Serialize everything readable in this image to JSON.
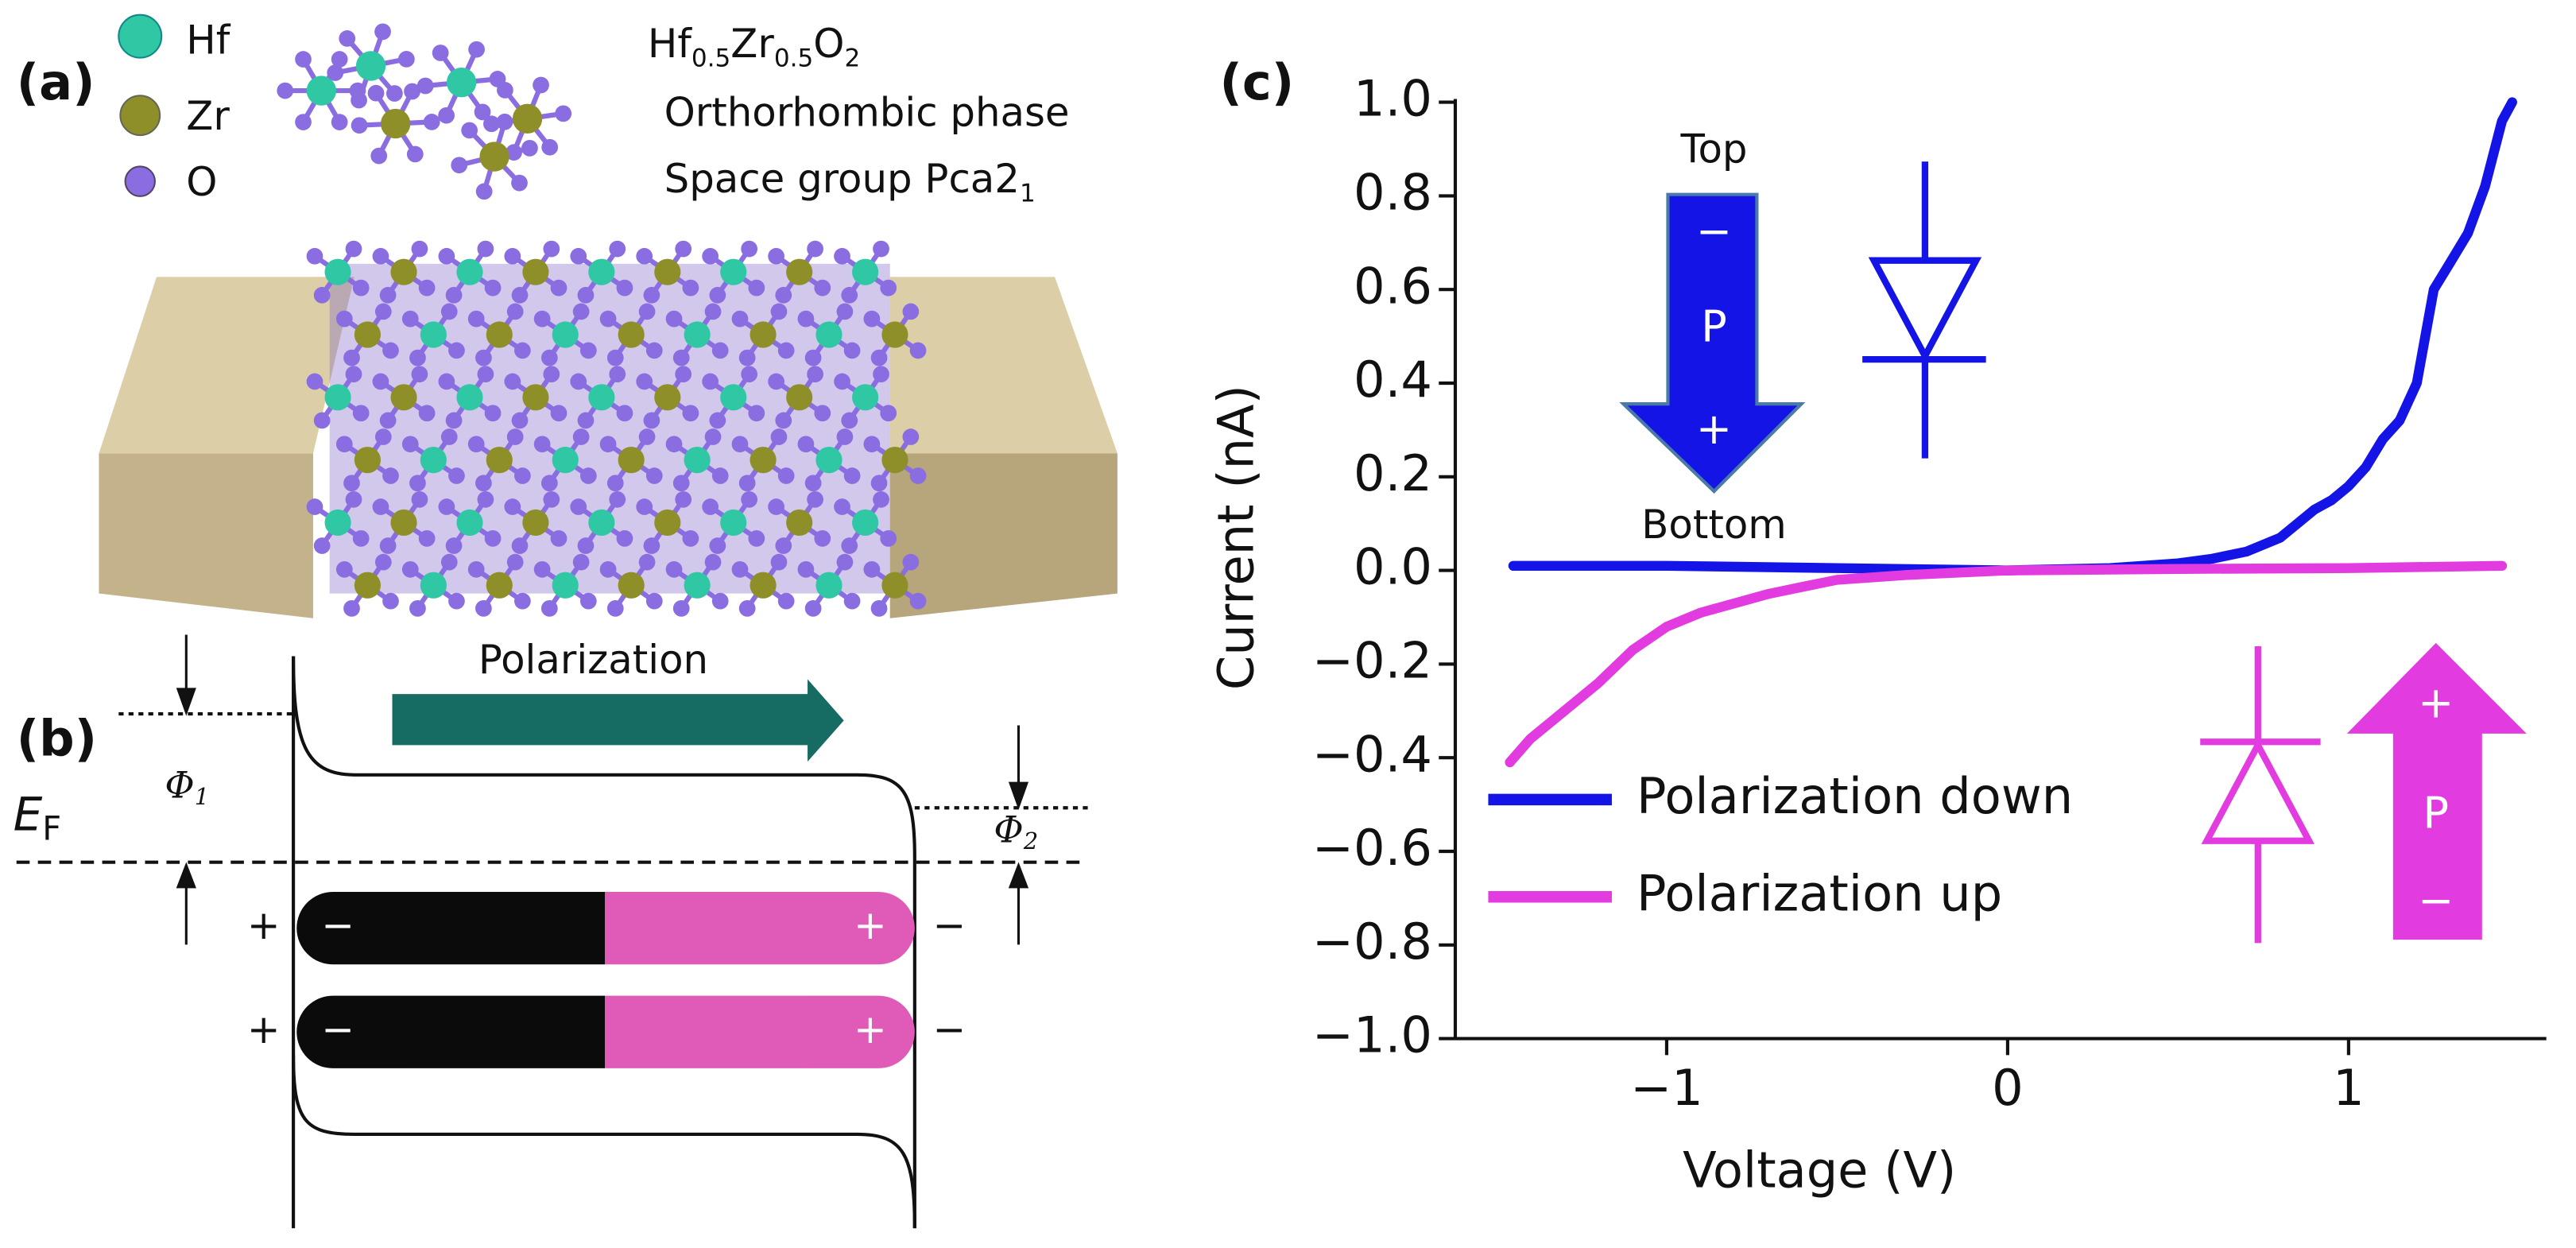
{
  "panel_a": {
    "label": "(a)",
    "legend": [
      "Hf",
      "Zr",
      "O"
    ],
    "formula": [
      "Hf",
      "0.5",
      "Zr",
      "0.5",
      "O",
      "2"
    ],
    "phase": "Orthorhombic phase",
    "space_group": [
      "Space group Pca2",
      "1"
    ]
  },
  "panel_b": {
    "label": "(b)",
    "polarization": "Polarization",
    "fermi": [
      "E",
      "F"
    ],
    "phi1": [
      "Φ",
      "1"
    ],
    "phi2": [
      "Φ",
      "2"
    ],
    "plus": "+",
    "minus": "−"
  },
  "chart_data": {
    "type": "line",
    "label": "(c)",
    "xlabel": "Voltage (V)",
    "ylabel": "Current (nA)",
    "xlim": [
      -1.62,
      1.58
    ],
    "ylim": [
      -1,
      1
    ],
    "xticks": [
      {
        "value": -1,
        "label": "−1"
      },
      0,
      1
    ],
    "yticks": [
      {
        "value": -1,
        "label": "−1.0"
      },
      {
        "value": -0.8,
        "label": "−0.8"
      },
      {
        "value": -0.6,
        "label": "−0.6"
      },
      {
        "value": -0.4,
        "label": "−0.4"
      },
      {
        "value": -0.2,
        "label": "−0.2"
      },
      {
        "value": 0,
        "label": "0.0"
      },
      0.2,
      0.4,
      0.6,
      0.8,
      {
        "value": 1,
        "label": "1.0"
      }
    ],
    "grid": false,
    "legend": "lower left",
    "series": [
      {
        "name": "Polarization down",
        "color": "#1414e6",
        "x": [
          -1.45,
          -1.0,
          -0.5,
          0,
          0.3,
          0.5,
          0.6,
          0.7,
          0.8,
          0.9,
          0.95,
          1.0,
          1.05,
          1.1,
          1.15,
          1.2,
          1.25,
          1.3,
          1.35,
          1.4,
          1.45,
          1.48
        ],
        "values": [
          0.01,
          0.01,
          0.005,
          0,
          0.005,
          0.015,
          0.025,
          0.04,
          0.07,
          0.13,
          0.15,
          0.18,
          0.22,
          0.28,
          0.32,
          0.4,
          0.6,
          0.66,
          0.72,
          0.82,
          0.96,
          1.0
        ]
      },
      {
        "name": "Polarization up",
        "color": "#e23be0",
        "x": [
          -1.46,
          -1.4,
          -1.3,
          -1.2,
          -1.1,
          -1.0,
          -0.9,
          -0.8,
          -0.7,
          -0.6,
          -0.5,
          -0.3,
          0,
          0.5,
          1.0,
          1.45
        ],
        "values": [
          -0.41,
          -0.36,
          -0.3,
          -0.24,
          -0.17,
          -0.12,
          -0.09,
          -0.07,
          -0.05,
          -0.035,
          -0.02,
          -0.01,
          0,
          0.003,
          0.005,
          0.01
        ]
      }
    ],
    "annotations": {
      "top": "Top",
      "bottom": "Bottom",
      "p": "P",
      "minus": "−",
      "plus": "+"
    }
  }
}
